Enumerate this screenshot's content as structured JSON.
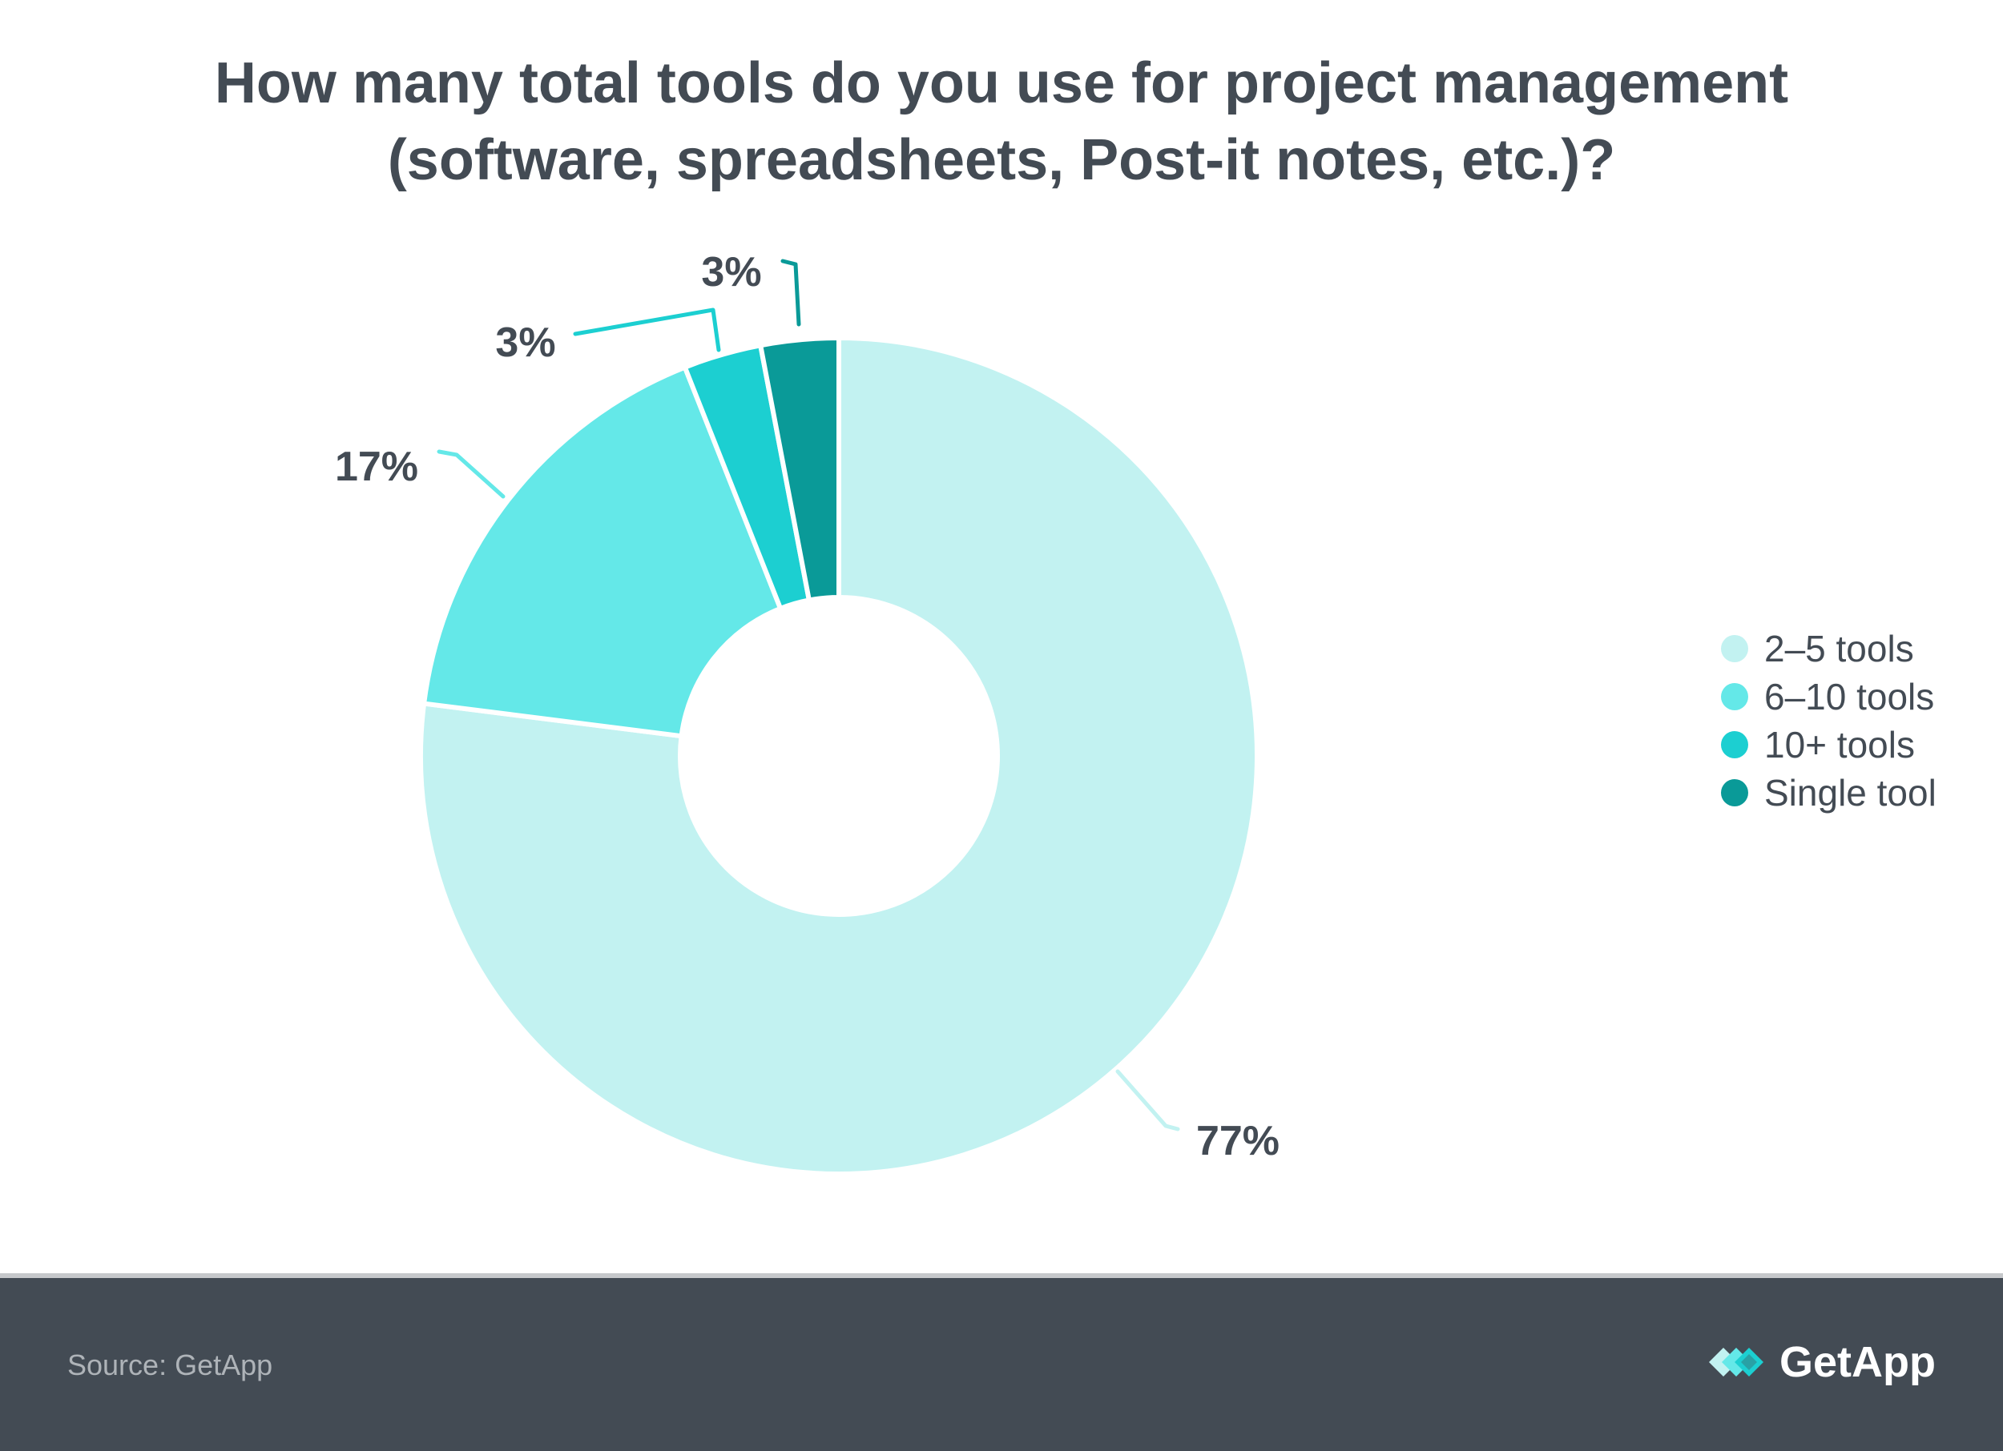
{
  "header": {
    "title_line1": "How many total tools do you use for project management",
    "title_line2": "(software, spreadsheets, Post-it notes, etc.)?"
  },
  "chart_data": {
    "type": "pie",
    "style": "donut",
    "title": "How many total tools do you use for project management (software, spreadsheets, Post-it notes, etc.)?",
    "categories": [
      "2-5 tools",
      "6-10 tools",
      "10+ tools",
      "Single tool"
    ],
    "values": [
      77,
      17,
      3,
      3
    ],
    "data_labels": [
      "77%",
      "17%",
      "3%",
      "3%"
    ],
    "colors": [
      "#c2f2f1",
      "#64e8e8",
      "#1ccfd1",
      "#0a9a98"
    ],
    "legend_position": "right"
  },
  "legend": {
    "items": [
      {
        "label": "2–5 tools",
        "color": "#c2f2f1"
      },
      {
        "label": "6–10 tools",
        "color": "#64e8e8"
      },
      {
        "label": "10+ tools",
        "color": "#1ccfd1"
      },
      {
        "label": "Single tool",
        "color": "#0a9a98"
      }
    ]
  },
  "footer": {
    "source": "Source: GetApp",
    "brand": "GetApp",
    "background": "#434b54"
  },
  "colors": {
    "text": "#434b54"
  }
}
